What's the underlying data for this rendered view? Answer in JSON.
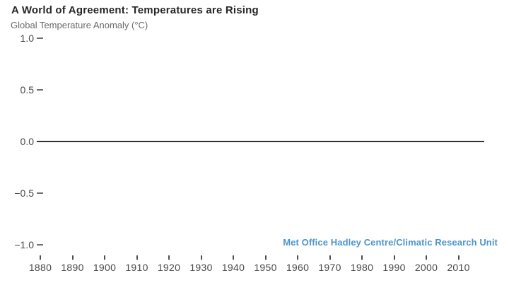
{
  "header": {
    "title": "A World of Agreement: Temperatures are Rising",
    "subtitle": "Global Temperature Anomaly (°C)"
  },
  "attribution": {
    "text": "Met Office Hadley Centre/Climatic Research Unit"
  },
  "colors": {
    "background": "#ffffff",
    "title": "#262626",
    "subtitle": "#6a6a6a",
    "axis_label": "#474747",
    "tick_mark": "#4d4d4d",
    "baseline": "#333333",
    "accent_blue": "#4e95cc"
  },
  "chart_data": {
    "type": "line",
    "title": "A World of Agreement: Temperatures are Rising",
    "ylabel": "Global Temperature Anomaly (°C)",
    "xlabel": "",
    "xlim": [
      1877,
      2021
    ],
    "ylim": [
      -1.15,
      1.1
    ],
    "grid": false,
    "legend_position": "none",
    "yticks": [
      1.0,
      0.5,
      0.0,
      -0.5,
      -1.0
    ],
    "ytick_labels": [
      "1.0",
      "0.5",
      "0.0",
      "−0.5",
      "−1.0"
    ],
    "xticks": [
      1880,
      1890,
      1900,
      1910,
      1920,
      1930,
      1940,
      1950,
      1960,
      1970,
      1980,
      1990,
      2000,
      2010
    ],
    "xtick_labels": [
      "1880",
      "1890",
      "1900",
      "1910",
      "1920",
      "1930",
      "1940",
      "1950",
      "1960",
      "1970",
      "1980",
      "1990",
      "2000",
      "2010"
    ],
    "series": [],
    "baseline": {
      "value": 0.0,
      "x_start": 1879,
      "x_end": 2018
    },
    "annotations": [
      "Met Office Hadley Centre/Climatic Research Unit"
    ]
  }
}
